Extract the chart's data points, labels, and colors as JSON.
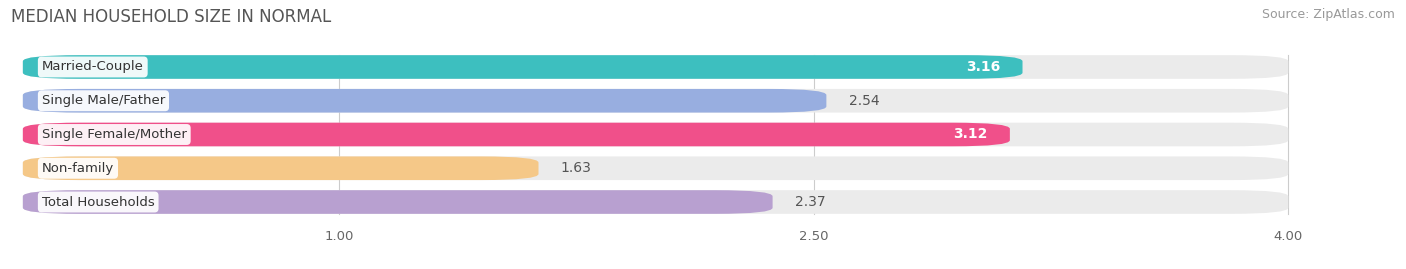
{
  "title": "MEDIAN HOUSEHOLD SIZE IN NORMAL",
  "source": "Source: ZipAtlas.com",
  "categories": [
    "Married-Couple",
    "Single Male/Father",
    "Single Female/Mother",
    "Non-family",
    "Total Households"
  ],
  "values": [
    3.16,
    2.54,
    3.12,
    1.63,
    2.37
  ],
  "bar_colors": [
    "#3dbfbf",
    "#98aee0",
    "#f0508a",
    "#f5c888",
    "#b8a0d0"
  ],
  "bar_bg_color": "#ebebeb",
  "label_inside": [
    true,
    false,
    true,
    false,
    false
  ],
  "xlim_data": [
    0.0,
    4.0
  ],
  "xlim_display": [
    -0.05,
    4.35
  ],
  "xticks": [
    1.0,
    2.5,
    4.0
  ],
  "background_color": "#ffffff",
  "title_fontsize": 12,
  "source_fontsize": 9,
  "bar_label_fontsize": 10,
  "category_fontsize": 9.5,
  "bar_height": 0.7,
  "bar_gap": 0.3
}
